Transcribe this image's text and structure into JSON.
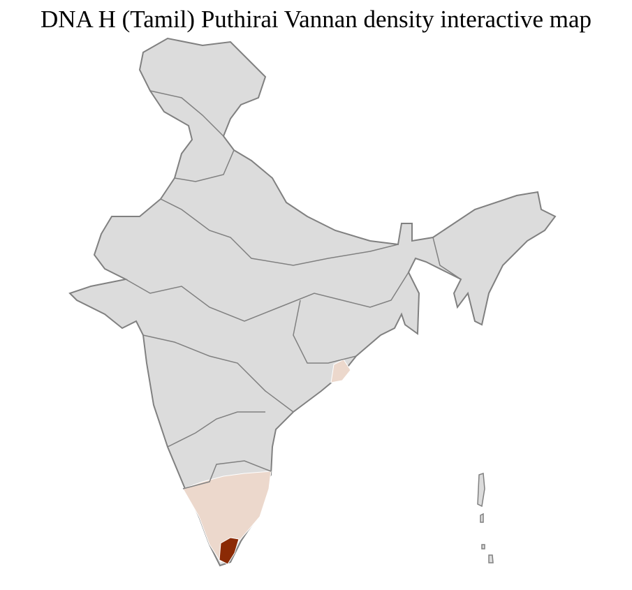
{
  "title": "DNA H (Tamil) Puthirai Vannan density interactive map",
  "colors": {
    "no_data": "#dcdcdc",
    "low_density": "#ecd8cc",
    "high_density": "#8b2a05",
    "state_border": "#808080",
    "district_border": "#ffffff"
  },
  "regions": [
    {
      "name": "south-india-low-density",
      "level": "low"
    },
    {
      "name": "odisha-coast-low-density",
      "level": "low"
    },
    {
      "name": "southern-tamil-nadu-high-density",
      "level": "high"
    }
  ]
}
